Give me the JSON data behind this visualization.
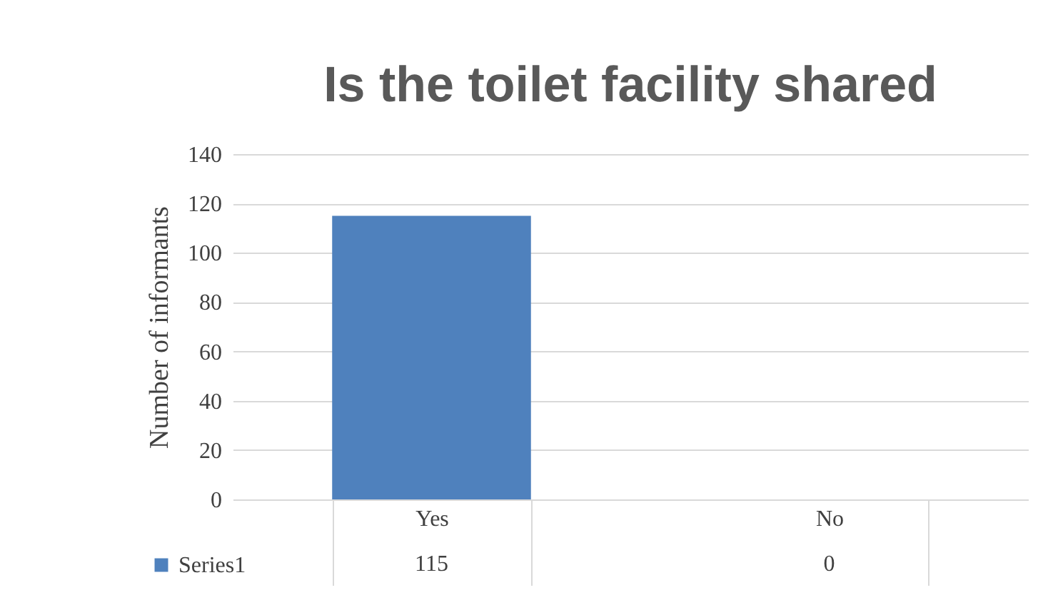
{
  "chart_data": {
    "type": "bar",
    "title": "Is the toilet facility shared",
    "ylabel": "Number of informants",
    "categories": [
      "Yes",
      "No"
    ],
    "series": [
      {
        "name": "Series1",
        "color": "#4f81bd",
        "values": [
          115,
          0
        ]
      }
    ],
    "ylim": [
      0,
      140
    ],
    "yticks": [
      0,
      20,
      40,
      60,
      80,
      100,
      120,
      140
    ],
    "grid": "y",
    "data_labels": true,
    "legend": "bottom left"
  }
}
